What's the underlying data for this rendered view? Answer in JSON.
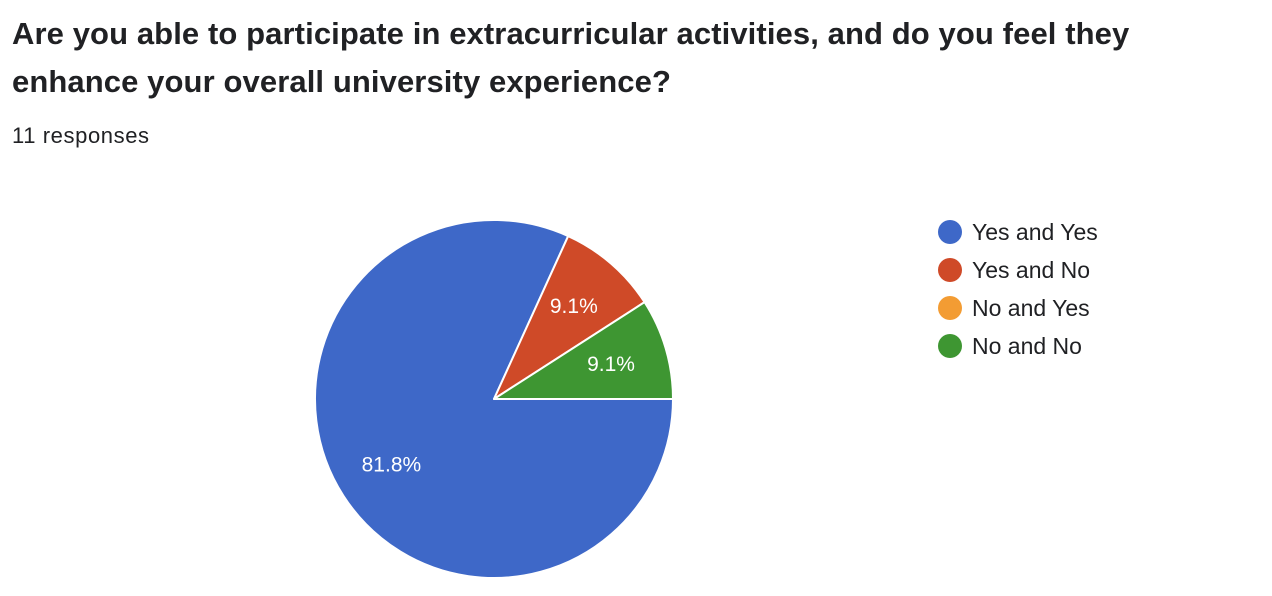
{
  "question": {
    "title": "Are you able to participate in extracurricular activities, and do you feel they enhance your overall university experience?",
    "response_count": "11 responses"
  },
  "chart_data": {
    "type": "pie",
    "categories": [
      "Yes and Yes",
      "Yes and No",
      "No and Yes",
      "No and No"
    ],
    "values": [
      81.8,
      9.1,
      0,
      9.1
    ],
    "data_labels": [
      "81.8%",
      "9.1%",
      "",
      "9.1%"
    ],
    "colors": [
      "#3e68c8",
      "#cf4a28",
      "#f39c33",
      "#3e9632"
    ],
    "legend_position": "right"
  }
}
